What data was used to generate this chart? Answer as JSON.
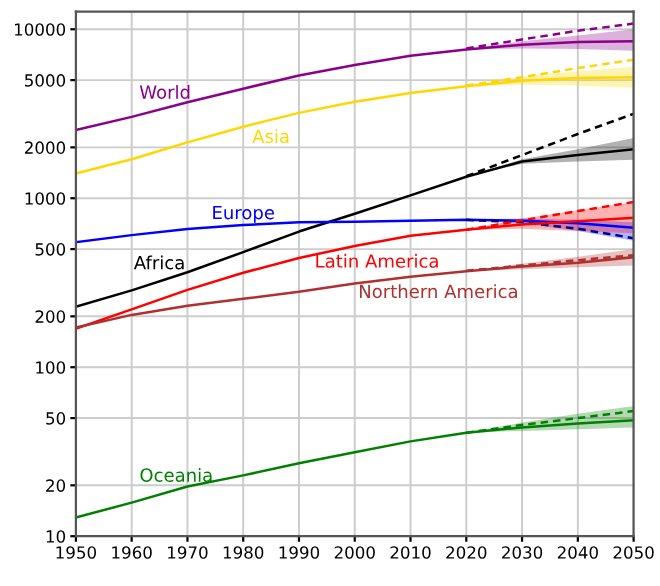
{
  "chart_data": {
    "type": "line",
    "log": "y",
    "grid": true,
    "legend": false,
    "marker": "none",
    "xlim": [
      1950,
      2050
    ],
    "xticks": [
      1950,
      1960,
      1970,
      1980,
      1990,
      2000,
      2010,
      2020,
      2030,
      2040,
      2050
    ],
    "ylim": [
      10,
      12700
    ],
    "yticks": [
      10,
      20,
      50,
      100,
      200,
      500,
      1000,
      2000,
      5000,
      10000
    ],
    "x": [
      1950,
      1960,
      1970,
      1980,
      1990,
      2000,
      2010,
      2020,
      2030,
      2040,
      2050
    ],
    "series": [
      {
        "name": "World",
        "color": "#8b008b",
        "line_style": "solid",
        "values": [
          2536,
          3030,
          3700,
          4450,
          5330,
          6140,
          6960,
          7600,
          8100,
          8400,
          8500
        ],
        "lower": [
          null,
          null,
          null,
          null,
          null,
          null,
          null,
          7600,
          7700,
          7650,
          7450
        ],
        "upper": [
          null,
          null,
          null,
          null,
          null,
          null,
          null,
          7600,
          8500,
          9200,
          10000
        ]
      },
      {
        "color": "#8b008b",
        "line_style": "dashed",
        "x": [
          2020,
          2030,
          2040,
          2050
        ],
        "values": [
          7700,
          8700,
          9800,
          10800
        ]
      },
      {
        "name": "Asia",
        "color": "#ffd700",
        "line_style": "solid",
        "values": [
          1400,
          1700,
          2140,
          2650,
          3200,
          3720,
          4200,
          4600,
          4950,
          5150,
          5200
        ],
        "lower": [
          null,
          null,
          null,
          null,
          null,
          null,
          null,
          4600,
          4700,
          4650,
          4500
        ],
        "upper": [
          null,
          null,
          null,
          null,
          null,
          null,
          null,
          4600,
          5250,
          5650,
          6000
        ]
      },
      {
        "color": "#ffd700",
        "line_style": "dashed",
        "x": [
          2020,
          2030,
          2040,
          2050
        ],
        "values": [
          4650,
          5200,
          5900,
          6600
        ]
      },
      {
        "name": "Africa",
        "color": "#000000",
        "line_style": "solid",
        "values": [
          228,
          285,
          365,
          480,
          635,
          810,
          1040,
          1340,
          1650,
          1800,
          1950
        ],
        "lower": [
          null,
          null,
          null,
          null,
          null,
          null,
          null,
          1340,
          1600,
          1650,
          1690
        ],
        "upper": [
          null,
          null,
          null,
          null,
          null,
          null,
          null,
          1340,
          1700,
          1950,
          2270
        ]
      },
      {
        "color": "#000000",
        "line_style": "dashed",
        "x": [
          2020,
          2030,
          2040,
          2050
        ],
        "values": [
          1350,
          1800,
          2400,
          3160
        ]
      },
      {
        "name": "Europe",
        "color": "#0000ff",
        "line_style": "solid",
        "values": [
          549,
          605,
          657,
          694,
          721,
          726,
          736,
          745,
          735,
          710,
          670
        ],
        "lower": [
          null,
          null,
          null,
          null,
          null,
          null,
          null,
          745,
          710,
          640,
          560
        ],
        "upper": [
          null,
          null,
          null,
          null,
          null,
          null,
          null,
          745,
          760,
          745,
          720
        ]
      },
      {
        "color": "#00008b",
        "line_style": "dashed",
        "x": [
          2020,
          2030,
          2040,
          2050
        ],
        "values": [
          745,
          720,
          660,
          580
        ]
      },
      {
        "name": "Latin America",
        "color": "#ff0000",
        "line_style": "solid",
        "values": [
          169,
          220,
          287,
          362,
          443,
          522,
          599,
          650,
          700,
          730,
          765
        ],
        "lower": [
          null,
          null,
          null,
          null,
          null,
          null,
          null,
          650,
          660,
          640,
          620
        ],
        "upper": [
          null,
          null,
          null,
          null,
          null,
          null,
          null,
          650,
          760,
          850,
          950
        ]
      },
      {
        "color": "#ff0000",
        "line_style": "dashed",
        "x": [
          2020,
          2030,
          2040,
          2050
        ],
        "values": [
          650,
          740,
          840,
          950
        ]
      },
      {
        "name": "Northern America",
        "color": "#b03030",
        "line_style": "solid",
        "values": [
          172,
          204,
          231,
          254,
          280,
          313,
          343,
          370,
          395,
          415,
          448
        ],
        "lower": [
          null,
          null,
          null,
          null,
          null,
          null,
          null,
          370,
          380,
          390,
          400
        ],
        "upper": [
          null,
          null,
          null,
          null,
          null,
          null,
          null,
          370,
          410,
          450,
          500
        ]
      },
      {
        "color": "#b03030",
        "line_style": "dashed",
        "x": [
          2020,
          2030,
          2040,
          2050
        ],
        "values": [
          372,
          400,
          430,
          460
        ]
      },
      {
        "name": "Oceania",
        "color": "#008000",
        "line_style": "solid",
        "values": [
          12.9,
          15.8,
          19.7,
          22.9,
          27,
          31.4,
          36.4,
          41,
          44,
          46.5,
          48.5
        ],
        "lower": [
          null,
          null,
          null,
          null,
          null,
          null,
          null,
          41,
          42,
          43,
          44
        ],
        "upper": [
          null,
          null,
          null,
          null,
          null,
          null,
          null,
          41,
          47,
          53,
          59
        ]
      },
      {
        "color": "#008000",
        "line_style": "dashed",
        "x": [
          2020,
          2030,
          2040,
          2050
        ],
        "values": [
          41,
          45.5,
          50,
          55
        ]
      }
    ]
  }
}
